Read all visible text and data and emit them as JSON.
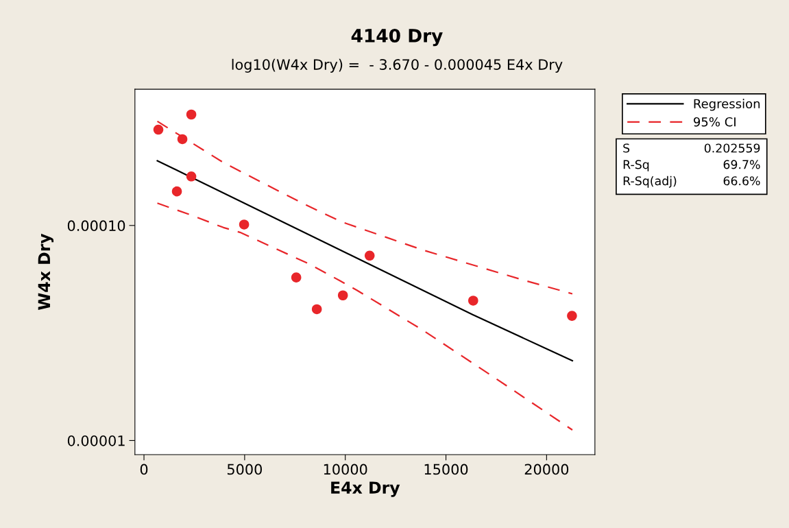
{
  "chart_data": {
    "type": "scatter",
    "title": "4140 Dry",
    "subtitle": "log10(W4x Dry) =  - 3.670 - 0.000045 E4x Dry",
    "xlabel": "E4x Dry",
    "ylabel": "W4x Dry",
    "log": "y",
    "xlim": [
      -450,
      22400
    ],
    "xticks": [
      0,
      5000,
      10000,
      15000,
      20000
    ],
    "ylim": [
      8.6e-06,
      0.00043
    ],
    "yticks": [
      {
        "value": 1e-05,
        "label": "0.00001"
      },
      {
        "value": 0.0001,
        "label": "0.00010"
      }
    ],
    "grid": false,
    "legend": "top right",
    "series": [
      {
        "color": "#e8262a",
        "marker": "circle",
        "x": [
          715,
          2351,
          1908,
          2351,
          1635,
          4974,
          7564,
          8586,
          9881,
          11210,
          16354,
          21261
        ],
        "values": [
          0.000279,
          0.000328,
          0.000252,
          0.000169,
          0.000144,
          0.000101,
          5.73e-05,
          4.08e-05,
          4.73e-05,
          7.24e-05,
          4.47e-05,
          3.8e-05
        ]
      },
      {
        "type": "line",
        "name": "Regression",
        "color": "#000000",
        "line_style": "solid",
        "marker": "none",
        "x": [
          664,
          16320,
          21280
        ],
        "values": [
          0.0002,
          3.85e-05,
          2.35e-05
        ]
      },
      {
        "type": "line",
        "name": "95% CI",
        "color": "#e8262a",
        "line_style": "dashed",
        "marker": "none",
        "x": [
          664,
          3950,
          5830,
          7940,
          9810,
          13850,
          18770,
          21280
        ],
        "values": [
          0.000305,
          0.000196,
          0.000159,
          0.000126,
          0.000104,
          7.69e-05,
          5.6e-05,
          4.81e-05
        ]
      },
      {
        "type": "line",
        "color": "#e8262a",
        "line_style": "dashed",
        "marker": "none",
        "x": [
          664,
          2310,
          3950,
          4770,
          8180,
          9710,
          10560,
          13850,
          17140,
          21280
        ],
        "values": [
          0.000127,
          0.000112,
          9.78e-05,
          9.29e-05,
          6.64e-05,
          5.55e-05,
          5.01e-05,
          3.26e-05,
          2.04e-05,
          1.12e-05
        ]
      }
    ],
    "annotations": [
      "S",
      "0.202559",
      "R-Sq",
      "69.7%",
      "R-Sq(adj)",
      "66.6%"
    ]
  }
}
